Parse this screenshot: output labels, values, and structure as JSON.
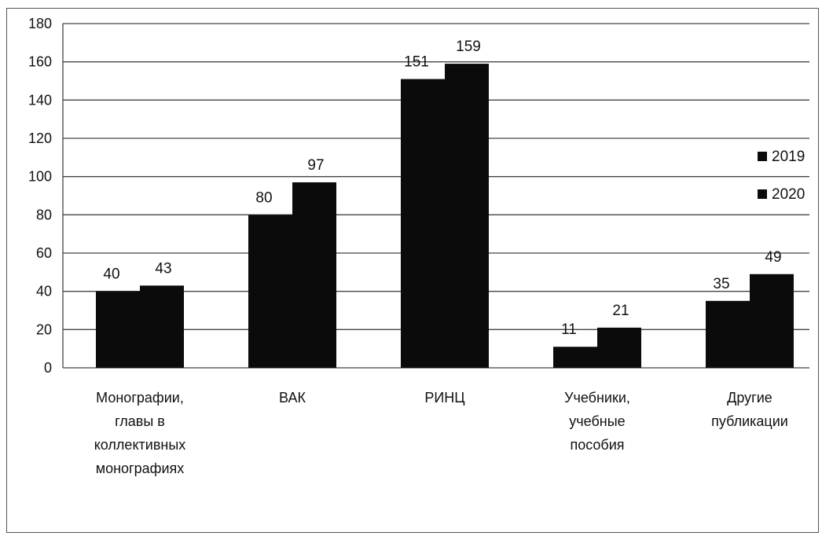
{
  "chart_data": {
    "type": "bar",
    "title": "",
    "xlabel": "",
    "ylabel": "",
    "ylim": [
      0,
      180
    ],
    "ytick_step": 20,
    "grid": true,
    "legend_position": "right",
    "categories": [
      [
        "Монографии,",
        "главы в",
        "коллективных",
        "монографиях"
      ],
      [
        "ВАК"
      ],
      [
        "РИНЦ"
      ],
      [
        "Учебники,",
        "учебные",
        "пособия"
      ],
      [
        "Другие",
        "публикации"
      ]
    ],
    "series": [
      {
        "name": "2019",
        "values": [
          40,
          80,
          151,
          11,
          35
        ],
        "color": "#0b0b0b"
      },
      {
        "name": "2020",
        "values": [
          43,
          97,
          159,
          21,
          49
        ],
        "color": "#0b0b0b"
      }
    ]
  }
}
